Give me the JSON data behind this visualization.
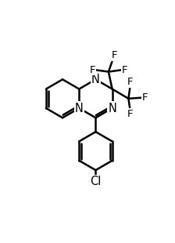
{
  "bg": "#ffffff",
  "lc": "#000000",
  "lw": 1.8,
  "figw": 2.24,
  "figh": 3.1,
  "dpi": 100,
  "xlim": [
    -0.5,
    10.5
  ],
  "ylim": [
    -1.0,
    13.5
  ],
  "label_fs": 10.5,
  "f_fs": 9.5,
  "cl_fs": 10.5
}
